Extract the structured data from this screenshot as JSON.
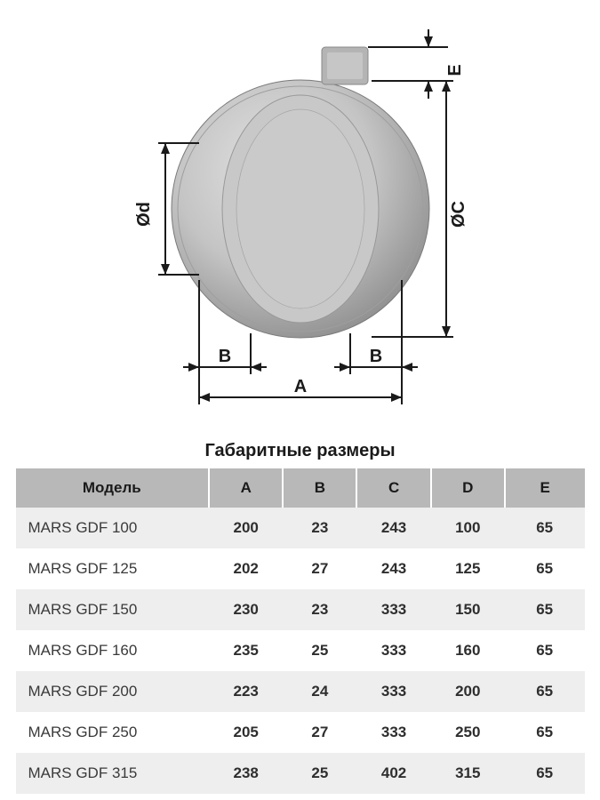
{
  "title": "Габаритные размеры",
  "diagram": {
    "labels": {
      "d": "Ød",
      "C": "ØC",
      "A": "A",
      "B": "B",
      "E": "E"
    },
    "colors": {
      "body_light": "#d4d4d4",
      "body_mid": "#b8b8b8",
      "body_dark": "#8a8a8a",
      "body_shadow": "#6a6a6a",
      "inlet": "#9a9a9a",
      "line": "#1a1a1a"
    }
  },
  "table": {
    "columns": [
      "Модель",
      "A",
      "B",
      "C",
      "D",
      "E"
    ],
    "col_widths_pct": [
      34,
      13,
      13,
      13,
      13,
      14
    ],
    "header_bg": "#b8b8b8",
    "row_odd_bg": "#eeeeee",
    "row_even_bg": "#ffffff",
    "rows": [
      [
        "MARS GDF 100",
        "200",
        "23",
        "243",
        "100",
        "65"
      ],
      [
        "MARS GDF 125",
        "202",
        "27",
        "243",
        "125",
        "65"
      ],
      [
        "MARS GDF 150",
        "230",
        "23",
        "333",
        "150",
        "65"
      ],
      [
        "MARS GDF 160",
        "235",
        "25",
        "333",
        "160",
        "65"
      ],
      [
        "MARS GDF 200",
        "223",
        "24",
        "333",
        "200",
        "65"
      ],
      [
        "MARS GDF 250",
        "205",
        "27",
        "333",
        "250",
        "65"
      ],
      [
        "MARS GDF 315",
        "238",
        "25",
        "402",
        "315",
        "65"
      ]
    ]
  }
}
